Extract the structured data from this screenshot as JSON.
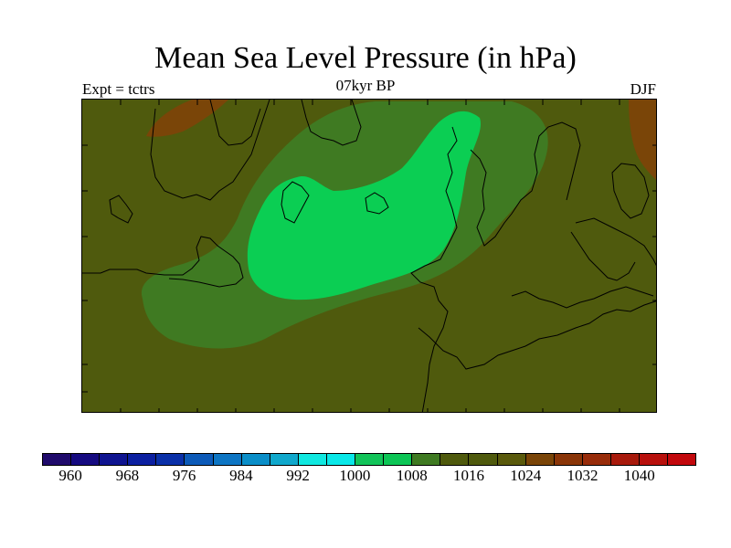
{
  "title": "Mean Sea Level Pressure (in hPa)",
  "subtitle_left": "Expt = tctrs",
  "subtitle_center": "07kyr BP",
  "subtitle_right": "DJF",
  "colors": {
    "field_1016": "#4f5a0d",
    "field_1012": "#3f7a22",
    "field_1008": "#14c44f",
    "field_1004": "#0bce53",
    "field_1020": "#7a4508",
    "coastline": "#000000"
  },
  "legend": {
    "colors": [
      "#1f0a6b",
      "#150a80",
      "#0f1490",
      "#0b1fa0",
      "#0a30a8",
      "#0c5ab8",
      "#0d75c3",
      "#0a8ec8",
      "#10a8cc",
      "#10e8e0",
      "#0ae8e8",
      "#12c459",
      "#0cc555",
      "#3f7a22",
      "#4f5a0d",
      "#4f5a0d",
      "#5a5a0c",
      "#7a4508",
      "#8a3508",
      "#982c0a",
      "#a81a0c",
      "#b8100c",
      "#c2080c"
    ],
    "labels": [
      "960",
      "968",
      "976",
      "984",
      "992",
      "1000",
      "1008",
      "1016",
      "1024",
      "1032",
      "1040"
    ]
  }
}
